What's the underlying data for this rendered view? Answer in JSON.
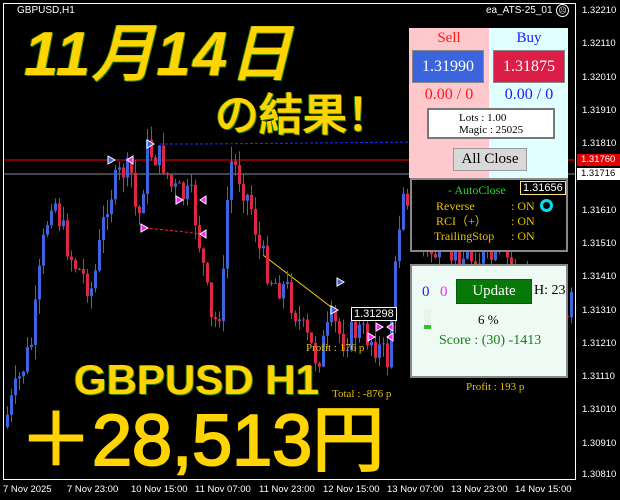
{
  "chart": {
    "symbol": "GBPUSD,H1",
    "ea_name": "ea_ATS-25_01",
    "ea_status_icon": "sad-face-icon",
    "price_labels": [
      "1.32210",
      "1.32110",
      "1.32010",
      "1.31910",
      "1.31810",
      "1.31610",
      "1.31510",
      "1.31410",
      "1.31310",
      "1.31210",
      "1.31110",
      "1.31010",
      "1.30910",
      "1.30810"
    ],
    "ask_line": "1.31760",
    "bid_line": "1.31716",
    "time_labels": [
      "7 Nov 2025",
      "7 Nov 23:00",
      "10 Nov 15:00",
      "11 Nov 07:00",
      "11 Nov 23:00",
      "12 Nov 15:00",
      "13 Nov 07:00",
      "13 Nov 23:00",
      "14 Nov 15:00"
    ],
    "colors": {
      "bull": "#3c64dc",
      "bear": "#dc2846",
      "ask": "#ff0000",
      "bid": "#8090a0",
      "overlay_text": "#ffd400"
    }
  },
  "overlay": {
    "date": "11月14日",
    "result": "の結果！",
    "pair": "GBPUSD H1",
    "profit": "＋28,513円"
  },
  "annotations": {
    "price_box_1": "1.31298",
    "price_box_2": "1.31656",
    "profit_1": "Profit : 176 p",
    "total": "Total : -876 p",
    "profit_2": "Profit : 193 p"
  },
  "trade_panel": {
    "sell_label": "Sell",
    "buy_label": "Buy",
    "sell_price": "1.31990",
    "buy_price": "1.31875",
    "sell_position": "0.00 / 0",
    "buy_position": "0.00 / 0",
    "lots": "Lots   : 1.00",
    "magic": "Magic : 25025",
    "all_close": "All Close"
  },
  "auto_panel": {
    "title": "- AutoClose",
    "rows": [
      {
        "label": "Reverse",
        "value": ": ON"
      },
      {
        "label": "RCI（+）",
        "value": ": ON"
      },
      {
        "label": "TrailingStop",
        "value": ": ON"
      }
    ]
  },
  "update_panel": {
    "count_blue": "0",
    "count_magenta": "0",
    "update_label": "Update",
    "hour": "H: 23",
    "progress": "6 %",
    "progress_value": 6,
    "score": "Score : (30) -1413"
  }
}
